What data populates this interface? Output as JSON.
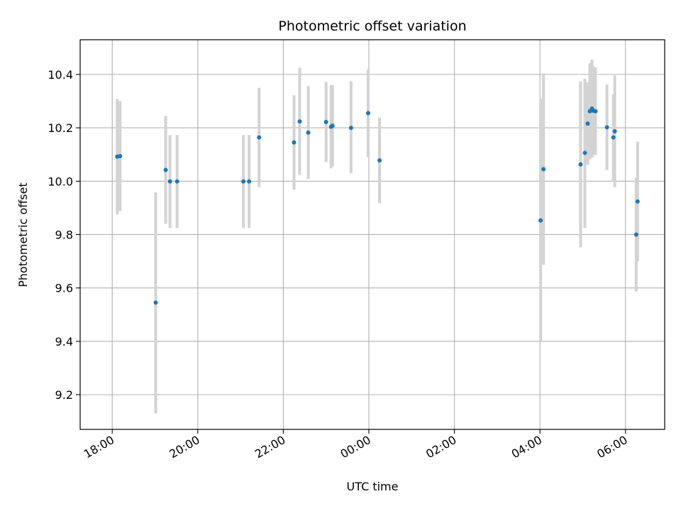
{
  "chart_data": {
    "type": "scatter",
    "title": "Photometric offset variation",
    "xlabel": "UTC time",
    "ylabel": "Photometric offset",
    "x_unit": "hours",
    "xlim": [
      "17:15",
      "06:55"
    ],
    "ylim": [
      9.07,
      10.53
    ],
    "grid": true,
    "x_ticks": [
      "18:00",
      "20:00",
      "22:00",
      "00:00",
      "02:00",
      "04:00",
      "06:00"
    ],
    "y_ticks": [
      "9.2",
      "9.4",
      "9.6",
      "9.8",
      "10.0",
      "10.2",
      "10.4"
    ],
    "colors": {
      "point": "#1f77b4",
      "errorbar": "#d3d3d3",
      "grid": "#b0b0b0"
    },
    "points": [
      {
        "x": "18:07",
        "y": 10.092,
        "err_low": 9.875,
        "err_high": 10.308
      },
      {
        "x": "18:11",
        "y": 10.094,
        "err_low": 9.888,
        "err_high": 10.3
      },
      {
        "x": "19:01",
        "y": 9.545,
        "err_low": 9.13,
        "err_high": 9.958
      },
      {
        "x": "19:15",
        "y": 10.042,
        "err_low": 9.84,
        "err_high": 10.244
      },
      {
        "x": "19:21",
        "y": 9.999,
        "err_low": 9.825,
        "err_high": 10.173
      },
      {
        "x": "19:31",
        "y": 9.999,
        "err_low": 9.825,
        "err_high": 10.173
      },
      {
        "x": "21:04",
        "y": 9.999,
        "err_low": 9.825,
        "err_high": 10.173
      },
      {
        "x": "21:12",
        "y": 9.999,
        "err_low": 9.825,
        "err_high": 10.173
      },
      {
        "x": "21:26",
        "y": 10.164,
        "err_low": 9.978,
        "err_high": 10.35
      },
      {
        "x": "22:15",
        "y": 10.145,
        "err_low": 9.968,
        "err_high": 10.322
      },
      {
        "x": "22:23",
        "y": 10.224,
        "err_low": 10.023,
        "err_high": 10.425
      },
      {
        "x": "22:35",
        "y": 10.182,
        "err_low": 10.008,
        "err_high": 10.356
      },
      {
        "x": "23:00",
        "y": 10.222,
        "err_low": 10.072,
        "err_high": 10.372
      },
      {
        "x": "23:07",
        "y": 10.204,
        "err_low": 10.048,
        "err_high": 10.36
      },
      {
        "x": "23:09",
        "y": 10.208,
        "err_low": 10.057,
        "err_high": 10.359
      },
      {
        "x": "23:35",
        "y": 10.2,
        "err_low": 10.03,
        "err_high": 10.374
      },
      {
        "x": "23:59",
        "y": 10.255,
        "err_low": 10.09,
        "err_high": 10.418
      },
      {
        "x": "00:15",
        "y": 10.078,
        "err_low": 9.918,
        "err_high": 10.238
      },
      {
        "x": "04:01",
        "y": 9.853,
        "err_low": 9.4,
        "err_high": 10.31
      },
      {
        "x": "04:05",
        "y": 10.045,
        "err_low": 9.686,
        "err_high": 10.404
      },
      {
        "x": "04:57",
        "y": 10.063,
        "err_low": 9.752,
        "err_high": 10.374
      },
      {
        "x": "05:03",
        "y": 10.106,
        "err_low": 9.825,
        "err_high": 10.384
      },
      {
        "x": "05:07",
        "y": 10.216,
        "err_low": 10.062,
        "err_high": 10.37
      },
      {
        "x": "05:10",
        "y": 10.262,
        "err_low": 10.082,
        "err_high": 10.442
      },
      {
        "x": "05:13",
        "y": 10.272,
        "err_low": 10.088,
        "err_high": 10.456
      },
      {
        "x": "05:15",
        "y": 10.264,
        "err_low": 10.098,
        "err_high": 10.43
      },
      {
        "x": "05:18",
        "y": 10.262,
        "err_low": 10.098,
        "err_high": 10.426
      },
      {
        "x": "05:34",
        "y": 10.202,
        "err_low": 10.042,
        "err_high": 10.362
      },
      {
        "x": "05:43",
        "y": 10.164,
        "err_low": 10.0,
        "err_high": 10.326
      },
      {
        "x": "05:45",
        "y": 10.187,
        "err_low": 9.978,
        "err_high": 10.396
      },
      {
        "x": "06:15",
        "y": 9.8,
        "err_low": 9.586,
        "err_high": 10.014
      },
      {
        "x": "06:17",
        "y": 9.924,
        "err_low": 9.7,
        "err_high": 10.148
      }
    ]
  }
}
